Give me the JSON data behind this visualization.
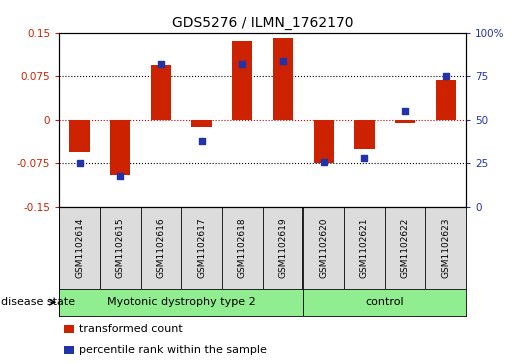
{
  "title": "GDS5276 / ILMN_1762170",
  "samples": [
    "GSM1102614",
    "GSM1102615",
    "GSM1102616",
    "GSM1102617",
    "GSM1102618",
    "GSM1102619",
    "GSM1102620",
    "GSM1102621",
    "GSM1102622",
    "GSM1102623"
  ],
  "transformed_count": [
    -0.055,
    -0.095,
    0.095,
    -0.013,
    0.135,
    0.14,
    -0.075,
    -0.05,
    -0.005,
    0.068
  ],
  "percentile_rank": [
    25,
    18,
    82,
    38,
    82,
    84,
    26,
    28,
    55,
    75
  ],
  "group1_label": "Myotonic dystrophy type 2",
  "group1_n": 6,
  "group2_label": "control",
  "group2_n": 4,
  "group_color": "#90EE90",
  "ylim_left": [
    -0.15,
    0.15
  ],
  "ylim_right": [
    0,
    100
  ],
  "yticks_left": [
    -0.15,
    -0.075,
    0,
    0.075,
    0.15
  ],
  "ytick_labels_left": [
    "-0.15",
    "-0.075",
    "0",
    "0.075",
    "0.15"
  ],
  "yticks_right": [
    0,
    25,
    50,
    75,
    100
  ],
  "ytick_labels_right": [
    "0",
    "25",
    "50",
    "75",
    "100%"
  ],
  "hlines": [
    0.075,
    0,
    -0.075
  ],
  "hline_zero_color": "#CC0000",
  "hline_other_color": "#000000",
  "bar_color": "#CC2200",
  "dot_color": "#2233AA",
  "disease_state_label": "disease state",
  "legend_entries": [
    "transformed count",
    "percentile rank within the sample"
  ],
  "bar_width": 0.5,
  "dot_size": 18,
  "label_bg": "#DCDCDC",
  "sample_fontsize": 6.5,
  "title_fontsize": 10,
  "axis_fontsize": 7.5,
  "legend_fontsize": 8,
  "disease_fontsize": 8
}
